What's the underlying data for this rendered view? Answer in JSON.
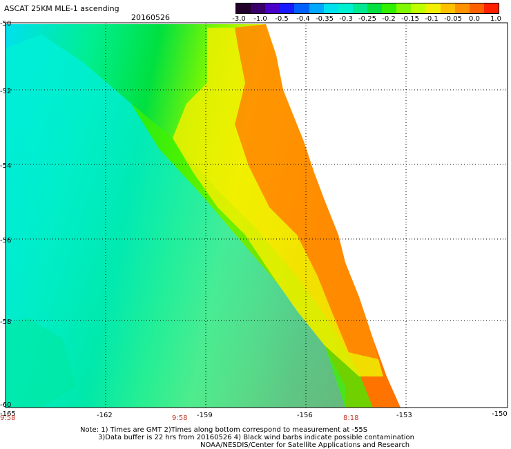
{
  "header": {
    "title": "ASCAT 25KM MLE-1 ascending",
    "date": "20160526"
  },
  "colorbar": {
    "colors": [
      "#22002a",
      "#3a006a",
      "#4a00c8",
      "#1a1aff",
      "#0060ff",
      "#00a8ff",
      "#00e0f0",
      "#00f0d0",
      "#00e890",
      "#00e040",
      "#30f000",
      "#80f800",
      "#c0ff00",
      "#f0f000",
      "#ffc000",
      "#ff9000",
      "#ff6000",
      "#ff2000"
    ],
    "labels": [
      "-3.0",
      "-1.0",
      "-0.5",
      "-0.4",
      "-0.35",
      "-0.3",
      "-0.25",
      "-0.2",
      "-0.15",
      "-0.1",
      "-0.05",
      "0.0",
      "1.0"
    ]
  },
  "axes": {
    "lon_ticks": [
      "-165",
      "-162",
      "-159",
      "-156",
      "-153",
      "-150"
    ],
    "lat_ticks": [
      "-50",
      "-52",
      "-54",
      "-56",
      "-58",
      "-60"
    ],
    "times": [
      "9:58",
      "9:58",
      "8:18"
    ]
  },
  "notes": [
    "Note: 1) Times are GMT 2)Times along bottom correspond to measurement at -55S",
    "3)Data buffer is 22 hrs from 20160526 4) Black wind barbs indicate possible contamination",
    "NOAA/NESDIS/Center for Satellite Applications and Research"
  ]
}
